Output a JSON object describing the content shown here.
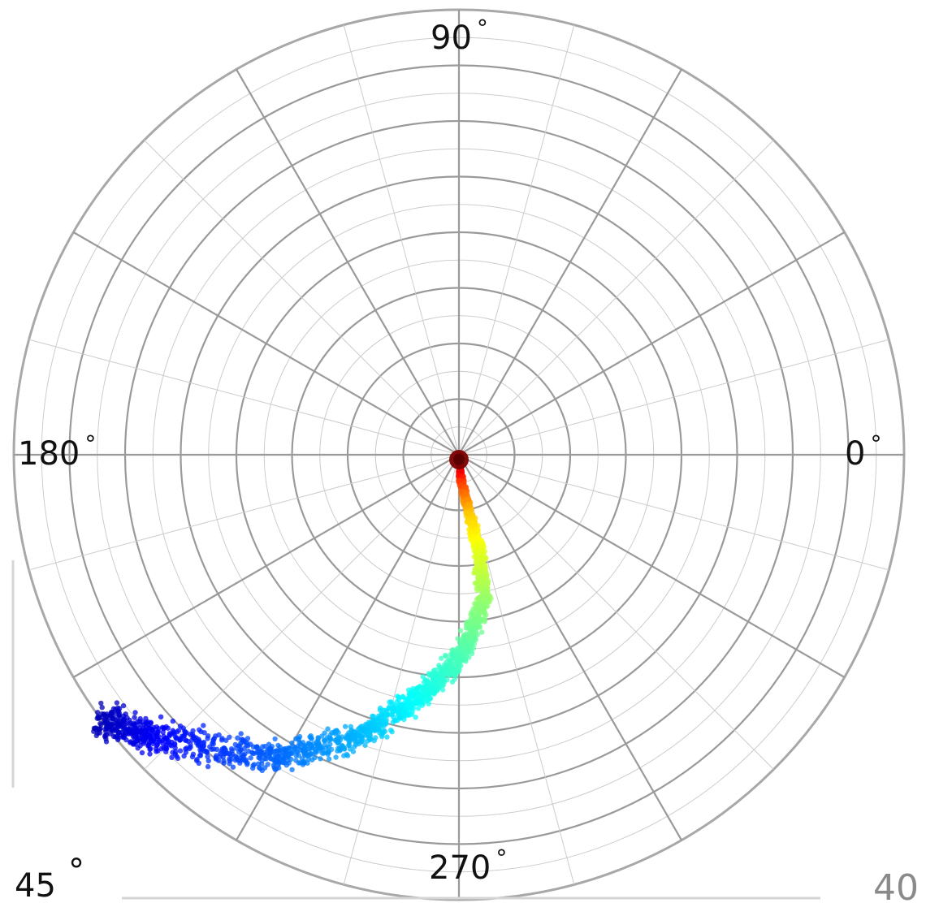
{
  "chart_data": {
    "type": "scatter",
    "projection": "polar",
    "title": "",
    "angular_tick_labels": [
      "0°",
      "90°",
      "180°",
      "270°"
    ],
    "angular_ticks_deg": [
      0,
      90,
      180,
      270
    ],
    "angular_minor_step_deg": 15,
    "radial_major_rings": 8,
    "radial_minor_rings": 16,
    "grid": true,
    "colormap": "jet",
    "colors": {
      "grid_major": "#9a9a9a",
      "grid_minor": "#cccccc",
      "outer_ring": "#a8a8a8",
      "background": "#ffffff"
    },
    "density_path": [
      {
        "theta": 270,
        "r": 0.0,
        "c": 1.0
      },
      {
        "theta": 275,
        "r": 0.06,
        "c": 0.82
      },
      {
        "theta": 280,
        "r": 0.13,
        "c": 0.68
      },
      {
        "theta": 282,
        "r": 0.22,
        "c": 0.6
      },
      {
        "theta": 280,
        "r": 0.33,
        "c": 0.52
      },
      {
        "theta": 271,
        "r": 0.45,
        "c": 0.45
      },
      {
        "theta": 260,
        "r": 0.56,
        "c": 0.38
      },
      {
        "theta": 250,
        "r": 0.68,
        "c": 0.3
      },
      {
        "theta": 238,
        "r": 0.8,
        "c": 0.22
      },
      {
        "theta": 223,
        "r": 0.93,
        "c": 0.12
      },
      {
        "theta": 216,
        "r": 1.01,
        "c": 0.05
      }
    ],
    "corner_labels": {
      "bottom_left": "45",
      "bottom_left_symbol": "°",
      "bottom_right": "40"
    }
  }
}
